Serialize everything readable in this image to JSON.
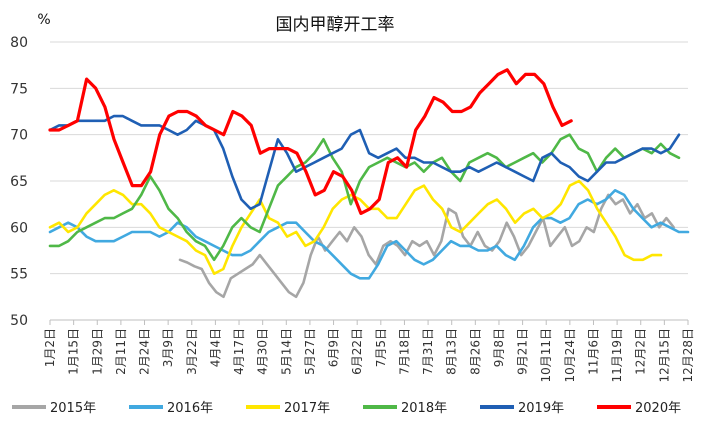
{
  "chart_data": {
    "type": "line",
    "title": "国内甲醇开工率",
    "unit_label": "%",
    "ylim": [
      50,
      80
    ],
    "yticks": [
      50,
      55,
      60,
      65,
      70,
      75,
      80
    ],
    "grid": "horizontal",
    "legend_position": "bottom",
    "x_categories": [
      "1月2日",
      "1月15日",
      "1月29日",
      "2月11日",
      "2月24日",
      "3月9日",
      "3月22日",
      "4月4日",
      "4月17日",
      "4月30日",
      "5月14日",
      "5月27日",
      "6月9日",
      "6月22日",
      "7月5日",
      "7月18日",
      "7月31日",
      "8月13日",
      "8月26日",
      "9月8日",
      "9月21日",
      "10月11日",
      "10月24日",
      "11月6日",
      "11月19日",
      "12月2日",
      "12月15日",
      "12月28日"
    ],
    "series": [
      {
        "name": "2015年",
        "color": "#a6a6a6",
        "start": 5.5,
        "values": [
          56.5,
          56.2,
          55.8,
          55.5,
          54.0,
          53.0,
          52.5,
          54.5,
          55.0,
          55.5,
          56.0,
          57.0,
          56.0,
          55.0,
          54.0,
          53.0,
          52.5,
          54.0,
          57.0,
          59.0,
          57.5,
          58.5,
          59.5,
          58.5,
          60.0,
          59.0,
          57.0,
          56.0,
          58.0,
          58.5,
          58.0,
          57.0,
          58.5,
          58.0,
          58.5,
          57.0,
          58.5,
          62.0,
          61.5,
          59.0,
          58.0,
          59.5,
          58.0,
          57.5,
          58.5,
          60.5,
          59.0,
          57.0,
          58.0,
          59.5,
          61.0,
          58.0,
          59.0,
          60.0,
          58.0,
          58.5,
          60.0,
          59.5,
          62.0,
          63.5,
          62.5,
          63.0,
          61.5,
          62.5,
          61.0,
          61.5,
          60.0,
          61.0,
          60.0
        ]
      },
      {
        "name": "2016年",
        "color": "#41a9e0",
        "start": 0,
        "values": [
          59.5,
          60.0,
          60.5,
          60.0,
          59.0,
          58.5,
          58.5,
          58.5,
          59.0,
          59.5,
          59.5,
          59.5,
          59.0,
          59.5,
          60.5,
          60.0,
          59.0,
          58.5,
          58.0,
          57.5,
          57.0,
          57.0,
          57.5,
          58.5,
          59.5,
          60.0,
          60.5,
          60.5,
          59.5,
          58.5,
          58.0,
          57.0,
          56.0,
          55.0,
          54.5,
          54.5,
          56.0,
          58.0,
          58.5,
          57.5,
          56.5,
          56.0,
          56.5,
          57.5,
          58.5,
          58.0,
          58.0,
          57.5,
          57.5,
          58.0,
          57.0,
          56.5,
          58.0,
          60.0,
          61.0,
          61.0,
          60.5,
          61.0,
          62.5,
          63.0,
          62.5,
          63.0,
          64.0,
          63.5,
          62.0,
          61.0,
          60.0,
          60.5,
          60.0,
          59.5,
          59.5
        ]
      },
      {
        "name": "2017年",
        "color": "#ffe600",
        "start": 0,
        "values": [
          60.0,
          60.5,
          59.5,
          60.0,
          61.5,
          62.5,
          63.5,
          64.0,
          63.5,
          62.5,
          62.5,
          61.5,
          60.0,
          59.5,
          59.0,
          58.5,
          57.5,
          57.0,
          55.0,
          55.5,
          58.0,
          60.0,
          61.5,
          63.0,
          61.0,
          60.5,
          59.0,
          59.5,
          58.0,
          58.5,
          60.0,
          62.0,
          63.0,
          63.5,
          63.0,
          62.0,
          62.0,
          61.0,
          61.0,
          62.5,
          64.0,
          64.5,
          63.0,
          62.0,
          60.0,
          59.5,
          60.5,
          61.5,
          62.5,
          63.0,
          62.0,
          60.5,
          61.5,
          62.0,
          61.0,
          61.5,
          62.5,
          64.5,
          65.0,
          64.0,
          62.0,
          60.5,
          59.0,
          57.0,
          56.5,
          56.5,
          57.0,
          57.0
        ]
      },
      {
        "name": "2018年",
        "color": "#4fb847",
        "start": 0,
        "values": [
          58.0,
          58.0,
          58.5,
          59.5,
          60.0,
          60.5,
          61.0,
          61.0,
          61.5,
          62.0,
          63.5,
          65.5,
          64.0,
          62.0,
          61.0,
          59.5,
          58.5,
          58.0,
          56.5,
          58.0,
          60.0,
          61.0,
          60.0,
          59.5,
          62.0,
          64.5,
          65.5,
          66.5,
          67.0,
          68.0,
          69.5,
          67.5,
          66.0,
          62.5,
          65.0,
          66.5,
          67.0,
          67.5,
          67.0,
          66.5,
          67.0,
          66.0,
          67.0,
          67.5,
          66.0,
          65.0,
          67.0,
          67.5,
          68.0,
          67.5,
          66.5,
          67.0,
          67.5,
          68.0,
          67.0,
          68.0,
          69.5,
          70.0,
          68.5,
          68.0,
          66.0,
          67.5,
          68.5,
          67.5,
          68.0,
          68.5,
          68.0,
          69.0,
          68.0,
          67.5
        ]
      },
      {
        "name": "2019年",
        "color": "#1f5fb4",
        "start": 0,
        "values": [
          70.5,
          71.0,
          71.0,
          71.5,
          71.5,
          71.5,
          71.5,
          72.0,
          72.0,
          71.5,
          71.0,
          71.0,
          71.0,
          70.5,
          70.0,
          70.5,
          71.5,
          71.0,
          70.5,
          68.5,
          65.5,
          63.0,
          62.0,
          62.5,
          66.0,
          69.5,
          68.0,
          66.0,
          66.5,
          67.0,
          67.5,
          68.0,
          68.5,
          70.0,
          70.5,
          68.0,
          67.5,
          68.0,
          68.5,
          67.5,
          67.5,
          67.0,
          67.0,
          66.5,
          66.0,
          66.0,
          66.5,
          66.0,
          66.5,
          67.0,
          66.5,
          66.0,
          65.5,
          65.0,
          67.5,
          68.0,
          67.0,
          66.5,
          65.5,
          65.0,
          66.0,
          67.0,
          67.0,
          67.5,
          68.0,
          68.5,
          68.5,
          68.0,
          68.5,
          70.0
        ]
      },
      {
        "name": "2020年",
        "color": "#ff0000",
        "start": 0,
        "values": [
          70.5,
          70.5,
          71.0,
          71.5,
          76.0,
          75.0,
          73.0,
          69.5,
          67.0,
          64.5,
          64.5,
          66.0,
          70.0,
          72.0,
          72.5,
          72.5,
          72.0,
          71.0,
          70.5,
          70.0,
          72.5,
          72.0,
          71.0,
          68.0,
          68.5,
          68.5,
          68.5,
          68.0,
          66.0,
          63.5,
          64.0,
          66.0,
          65.5,
          64.0,
          61.5,
          62.0,
          63.0,
          67.0,
          67.5,
          66.5,
          70.5,
          72.0,
          74.0,
          73.5,
          72.5,
          72.5,
          73.0,
          74.5,
          75.5,
          76.5,
          77.0,
          75.5,
          76.5,
          76.5,
          75.5,
          73.0,
          71.0,
          71.5
        ]
      }
    ]
  }
}
